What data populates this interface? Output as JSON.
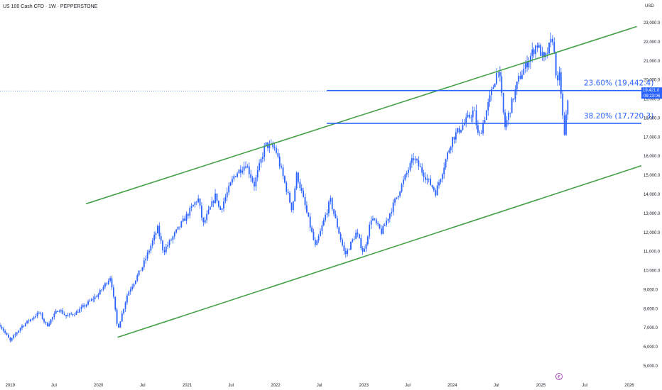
{
  "header": {
    "title": "US 100 Cash CFD · 1W · PEPPERSTONE"
  },
  "currency_label": "USD",
  "chart_data": {
    "type": "candlestick",
    "title": "US 100 Cash CFD · 1W · PEPPERSTONE",
    "ylabel": "USD",
    "ylim": [
      4500,
      23800
    ],
    "xlim": [
      "2018-11-20",
      "2026-02-20"
    ],
    "grid": false,
    "y_ticks": [
      "23,000.0",
      "22,000.0",
      "21,000.0",
      "20,000.0",
      "19,000.0",
      "18,000.0",
      "17,000.0",
      "16,000.0",
      "15,000.0",
      "14,000.0",
      "13,000.0",
      "12,000.0",
      "11,000.0",
      "10,000.0",
      "9,000.0",
      "8,000.0",
      "7,000.0",
      "6,000.0",
      "5,000.0"
    ],
    "x_ticks": [
      "2019",
      "Jul",
      "2020",
      "Jul",
      "2021",
      "Jul",
      "2022",
      "Jul",
      "2023",
      "Jul",
      "2024",
      "Jul",
      "2025",
      "Jul",
      "2026"
    ],
    "current_price": {
      "value": 19421.0,
      "label": "19,421.0",
      "countdown": "09:23:06"
    },
    "price_path": [
      [
        "2018-11-20",
        7150
      ],
      [
        "2019-01-01",
        6300
      ],
      [
        "2019-02-15",
        7050
      ],
      [
        "2019-05-01",
        7800
      ],
      [
        "2019-06-01",
        7100
      ],
      [
        "2019-07-20",
        8000
      ],
      [
        "2019-08-20",
        7600
      ],
      [
        "2019-10-01",
        7800
      ],
      [
        "2019-12-31",
        8750
      ],
      [
        "2020-02-20",
        9700
      ],
      [
        "2020-03-20",
        6900
      ],
      [
        "2020-04-30",
        8800
      ],
      [
        "2020-06-30",
        10200
      ],
      [
        "2020-09-01",
        12200
      ],
      [
        "2020-09-25",
        11000
      ],
      [
        "2020-12-31",
        12900
      ],
      [
        "2021-02-15",
        13800
      ],
      [
        "2021-03-08",
        12400
      ],
      [
        "2021-04-30",
        14000
      ],
      [
        "2021-05-15",
        13100
      ],
      [
        "2021-07-15",
        15000
      ],
      [
        "2021-09-01",
        15600
      ],
      [
        "2021-10-05",
        14500
      ],
      [
        "2021-11-20",
        16600
      ],
      [
        "2021-12-31",
        16400
      ],
      [
        "2022-03-10",
        13200
      ],
      [
        "2022-03-30",
        15100
      ],
      [
        "2022-06-15",
        11200
      ],
      [
        "2022-08-15",
        13700
      ],
      [
        "2022-10-15",
        10800
      ],
      [
        "2022-12-01",
        12000
      ],
      [
        "2022-12-31",
        10900
      ],
      [
        "2023-02-01",
        12800
      ],
      [
        "2023-03-15",
        12000
      ],
      [
        "2023-06-30",
        15200
      ],
      [
        "2023-07-25",
        15900
      ],
      [
        "2023-10-25",
        14100
      ],
      [
        "2023-12-31",
        16900
      ],
      [
        "2024-03-31",
        18400
      ],
      [
        "2024-04-19",
        16900
      ],
      [
        "2024-07-10",
        20700
      ],
      [
        "2024-08-05",
        17500
      ],
      [
        "2024-09-30",
        20000
      ],
      [
        "2024-12-15",
        21900
      ],
      [
        "2025-01-15",
        21000
      ],
      [
        "2025-02-18",
        22200
      ],
      [
        "2025-03-10",
        19700
      ],
      [
        "2025-03-20",
        20300
      ],
      [
        "2025-04-07",
        16900
      ],
      [
        "2025-04-25",
        19400
      ]
    ],
    "trendlines": [
      {
        "name": "",
        "color": "#43a047",
        "points": [
          [
            "2019-11-10",
            13500
          ],
          [
            "2026-02-01",
            22800
          ]
        ]
      },
      {
        "name": "",
        "color": "#43a047",
        "points": [
          [
            "2020-03-20",
            6500
          ],
          [
            "2026-02-20",
            15500
          ]
        ]
      }
    ],
    "levels": [
      {
        "label": "23.60% (19,442.4)",
        "value": 19442.4,
        "from": "2022-08-01",
        "color": "#2962ff"
      },
      {
        "label": "38.20% (17,720.3)",
        "value": 17720.3,
        "from": "2022-08-01",
        "color": "#2962ff"
      }
    ],
    "colors": {
      "candles": "#2962ff",
      "channel": "#43a047",
      "levels": "#2962ff",
      "price_tag": "#2962ff"
    }
  }
}
